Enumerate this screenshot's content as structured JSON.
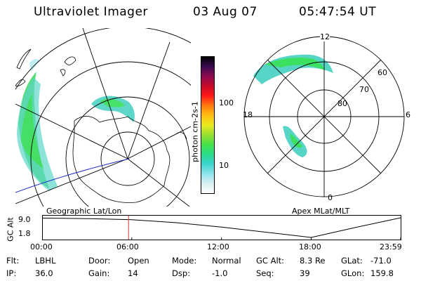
{
  "header": {
    "instrument": "Ultraviolet Imager",
    "date": "03 Aug 07",
    "time": "05:47:54 UT"
  },
  "left_panel": {
    "caption": "Geographic Lat/Lon"
  },
  "right_panel": {
    "caption": "Apex MLat/MLT",
    "mlat_labels": [
      "80",
      "70",
      "60"
    ],
    "mlt_labels": {
      "top": "12",
      "right": "6",
      "bottom": "0",
      "left": "18"
    }
  },
  "colorbar": {
    "unit_label": "photon cm-2s-1",
    "tick_labels": [
      "100",
      "10"
    ],
    "colors": [
      "#ffffff",
      "#d8eef2",
      "#8ee4ec",
      "#3ad6d0",
      "#28dc88",
      "#44e24a",
      "#9ae02e",
      "#eaea20",
      "#ffbf10",
      "#ff7a10",
      "#ff1818",
      "#c80a28",
      "#8c0a50",
      "#3a0a4e",
      "#000000"
    ]
  },
  "altitude_plot": {
    "ylabel": "GC Alt",
    "y_ticks": [
      "9.0",
      "1.8"
    ],
    "x_ticks": [
      "00:00",
      "06:00",
      "12:00",
      "18:00",
      "23:59"
    ],
    "marker_color": "#e03030"
  },
  "status": {
    "rows": [
      [
        {
          "key": "Flt:",
          "value": "LBHL"
        },
        {
          "key": "Door:",
          "value": "Open"
        },
        {
          "key": "Mode:",
          "value": "Normal"
        },
        {
          "key": "GC Alt:",
          "value": "8.3 Re"
        },
        {
          "key": "GLat:",
          "value": "-71.0"
        }
      ],
      [
        {
          "key": "IP:",
          "value": "36.0"
        },
        {
          "key": "Gain:",
          "value": "14"
        },
        {
          "key": "Dsp:",
          "value": "-1.0"
        },
        {
          "key": "Seq:",
          "value": "39"
        },
        {
          "key": "GLon:",
          "value": "159.8"
        }
      ]
    ]
  },
  "chart_data": {
    "type": "line",
    "title": "",
    "xlabel": "",
    "ylabel": "GC Alt",
    "x": [
      "00:00",
      "03:00",
      "06:00",
      "09:00",
      "12:00",
      "15:00",
      "18:00",
      "21:00",
      "23:59"
    ],
    "series": [
      {
        "values": [
          8.9,
          8.7,
          8.3,
          7.2,
          5.6,
          3.7,
          1.8,
          5.5,
          9.0
        ]
      }
    ],
    "ylim": [
      1.8,
      9.0
    ],
    "marker_x": "05:47"
  }
}
